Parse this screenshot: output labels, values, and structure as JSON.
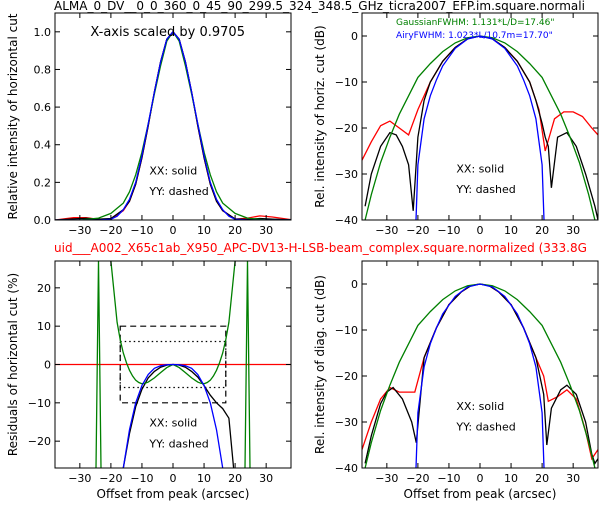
{
  "figure": {
    "title_top": "ALMA_0_DV__0_0_360_0_45_90_299.5_324_348.5_GHz_ticra2007_EFP.im.square.normali",
    "title_mid": "uid___A002_X65c1ab_X950_APC-DV13-H-LSB-beam_complex.square.normalized (333.8G",
    "title_mid_color": "#ff0000"
  },
  "chart_data": [
    {
      "id": "top-left",
      "type": "line",
      "title": "",
      "xlabel": "",
      "ylabel": "Relative intensity of horizontal cut",
      "xlim": [
        -38,
        38
      ],
      "ylim": [
        0,
        1.1
      ],
      "xticks": [
        -30,
        -20,
        -10,
        0,
        10,
        20,
        30
      ],
      "xtick_labels": [
        "−30",
        "−20",
        "−10",
        "0",
        "10",
        "20",
        "30"
      ],
      "yticks": [
        0,
        0.2,
        0.4,
        0.6,
        0.8,
        1.0
      ],
      "ytick_labels": [
        "0.0",
        "0.2",
        "0.4",
        "0.6",
        "0.8",
        "1.0"
      ],
      "grid": false,
      "annotations": [
        "X-axis scaled by 0.9705",
        "XX: solid",
        "YY: dashed"
      ],
      "series": [
        {
          "color": "#ff0000",
          "x": [
            -38,
            -32,
            -28,
            -24,
            -20,
            -16,
            -14,
            -12,
            -10,
            -8,
            -6,
            -4,
            -2,
            0,
            2,
            4,
            6,
            8,
            10,
            12,
            14,
            16,
            20,
            24,
            28,
            32,
            38
          ],
          "y": [
            0,
            0.012,
            0.012,
            0.003,
            0.005,
            0.05,
            0.1,
            0.19,
            0.33,
            0.5,
            0.68,
            0.84,
            0.96,
            1.0,
            0.96,
            0.84,
            0.68,
            0.5,
            0.33,
            0.19,
            0.1,
            0.05,
            0.005,
            0.01,
            0.022,
            0.016,
            0.002
          ]
        },
        {
          "color": "#000000",
          "x": [
            -38,
            -32,
            -28,
            -24,
            -20,
            -16,
            -14,
            -12,
            -10,
            -8,
            -6,
            -4,
            -2,
            0,
            2,
            4,
            6,
            8,
            10,
            12,
            14,
            16,
            20,
            24,
            28,
            32,
            38
          ],
          "y": [
            0,
            0.006,
            0.009,
            0.004,
            0.008,
            0.055,
            0.1,
            0.19,
            0.33,
            0.5,
            0.68,
            0.84,
            0.96,
            1.0,
            0.96,
            0.84,
            0.68,
            0.5,
            0.33,
            0.19,
            0.1,
            0.05,
            0.006,
            0.003,
            0.008,
            0.005,
            0.001
          ]
        },
        {
          "color": "#008000",
          "x": [
            -38,
            -30,
            -24,
            -20,
            -16,
            -14,
            -12,
            -10,
            -8,
            -6,
            -4,
            -2,
            0,
            2,
            4,
            6,
            8,
            10,
            12,
            14,
            16,
            20,
            24,
            30,
            38
          ],
          "y": [
            0,
            0,
            0.01,
            0.035,
            0.09,
            0.15,
            0.24,
            0.36,
            0.51,
            0.67,
            0.82,
            0.95,
            1.0,
            0.95,
            0.82,
            0.67,
            0.51,
            0.36,
            0.24,
            0.15,
            0.09,
            0.035,
            0.01,
            0,
            0
          ]
        },
        {
          "color": "#0000ff",
          "x": [
            -38,
            -24,
            -20,
            -18,
            -16,
            -14,
            -12,
            -10,
            -8,
            -6,
            -4,
            -2,
            0,
            2,
            4,
            6,
            8,
            10,
            12,
            14,
            16,
            18,
            20,
            24,
            38
          ],
          "y": [
            0,
            0,
            0.004,
            0.02,
            0.055,
            0.11,
            0.2,
            0.34,
            0.51,
            0.68,
            0.84,
            0.96,
            1.0,
            0.96,
            0.84,
            0.68,
            0.51,
            0.34,
            0.2,
            0.11,
            0.055,
            0.02,
            0.004,
            0,
            0
          ]
        }
      ]
    },
    {
      "id": "top-right",
      "type": "line",
      "title": "",
      "xlabel": "",
      "ylabel": "Rel. intensity of horiz. cut (dB)",
      "xlim": [
        -38,
        38
      ],
      "ylim": [
        -40,
        5
      ],
      "xticks": [
        -30,
        -20,
        -10,
        0,
        10,
        20,
        30
      ],
      "xtick_labels": [
        "−30",
        "−20",
        "−10",
        "0",
        "10",
        "20",
        "30"
      ],
      "yticks": [
        0,
        -10,
        -20,
        -30,
        -40
      ],
      "ytick_labels": [
        "0",
        "−10",
        "−20",
        "−30",
        "−40"
      ],
      "grid": false,
      "legend": [
        {
          "label": "GaussianFWHM: 1.131*L/D=17.46\"",
          "color": "#008000"
        },
        {
          "label": "AiryFWHM: 1.023*L/10.7m=17.70\"",
          "color": "#0000ff"
        }
      ],
      "annotations": [
        "XX: solid",
        "YY: dashed"
      ],
      "series": [
        {
          "color": "#ff0000",
          "x": [
            -38,
            -35,
            -32,
            -29,
            -26,
            -23,
            -20,
            -16,
            -12,
            -8,
            -4,
            0,
            4,
            8,
            12,
            16,
            19,
            21,
            24,
            27,
            30,
            33,
            36,
            38
          ],
          "y": [
            -27,
            -23,
            -19.5,
            -18.5,
            -20,
            -21.5,
            -16,
            -10,
            -5.5,
            -2.5,
            -0.6,
            0,
            -0.6,
            -2.5,
            -5.5,
            -10,
            -16,
            -25,
            -18,
            -16.5,
            -16.5,
            -17.5,
            -20,
            -21.5
          ]
        },
        {
          "color": "#000000",
          "x": [
            -37,
            -35,
            -32,
            -29,
            -27,
            -25,
            -23,
            -21.5,
            -20,
            -18,
            -16,
            -12,
            -8,
            -4,
            0,
            4,
            8,
            12,
            16,
            18,
            20,
            21,
            22,
            23,
            25,
            28,
            31,
            34,
            37,
            38
          ],
          "y": [
            -37,
            -30,
            -24,
            -21,
            -21.5,
            -24,
            -28,
            -38,
            -22,
            -14,
            -10,
            -5.5,
            -2.5,
            -0.6,
            0,
            -0.6,
            -2.5,
            -5.5,
            -10,
            -14,
            -19,
            -22,
            -24,
            -33,
            -22,
            -21,
            -24,
            -30,
            -37,
            -40
          ]
        },
        {
          "color": "#008000",
          "x": [
            -37,
            -35,
            -32,
            -29,
            -26,
            -23,
            -20,
            -16,
            -12,
            -8,
            -4,
            0,
            4,
            8,
            12,
            16,
            20,
            23,
            26,
            29,
            32,
            35,
            37
          ],
          "y": [
            -40,
            -34.5,
            -27.5,
            -22,
            -17,
            -13,
            -9,
            -6,
            -3.4,
            -1.5,
            -0.4,
            0,
            -0.4,
            -1.5,
            -3.4,
            -6,
            -9,
            -13,
            -17,
            -22,
            -27.5,
            -34.5,
            -40
          ]
        },
        {
          "color": "#0000ff",
          "x": [
            -20.6,
            -20,
            -18,
            -16,
            -14,
            -12,
            -8,
            -4,
            0,
            4,
            8,
            12,
            14,
            16,
            18,
            20,
            20.6
          ],
          "y": [
            -40,
            -28,
            -18,
            -13,
            -9.5,
            -6.5,
            -2.7,
            -0.65,
            0,
            -0.65,
            -2.7,
            -6.5,
            -9.5,
            -13,
            -18,
            -28,
            -40
          ]
        }
      ]
    },
    {
      "id": "bottom-left",
      "type": "line",
      "title": "",
      "xlabel": "Offset from peak (arcsec)",
      "ylabel": "Residuals of horizontal cut (%)",
      "xlim": [
        -38,
        38
      ],
      "ylim": [
        -27,
        27
      ],
      "xticks": [
        -30,
        -20,
        -10,
        0,
        10,
        20,
        30
      ],
      "xtick_labels": [
        "−30",
        "−20",
        "−10",
        "0",
        "10",
        "20",
        "30"
      ],
      "yticks": [
        20,
        10,
        0,
        -10,
        -20
      ],
      "ytick_labels": [
        "20",
        "10",
        "0",
        "−10",
        "−20"
      ],
      "grid": false,
      "annotations": [
        "XX: solid",
        "YY: dashed"
      ],
      "boxes": [
        {
          "style": "dashed",
          "x": [
            -17,
            17
          ],
          "y": [
            -10,
            10
          ]
        },
        {
          "style": "dotted",
          "x": [
            -17,
            17
          ],
          "y": [
            -6,
            6
          ]
        }
      ],
      "series": [
        {
          "color": "#ff0000",
          "x": [
            -38,
            38
          ],
          "y": [
            0,
            0
          ]
        },
        {
          "color": "#000000",
          "x": [
            -16,
            -14,
            -12,
            -10,
            -8,
            -6,
            -4,
            -2,
            0,
            2,
            4,
            6,
            8,
            10,
            12,
            14,
            16,
            18,
            19.5
          ],
          "y": [
            -27,
            -18,
            -11,
            -6.5,
            -3.5,
            -1.8,
            -0.7,
            -0.15,
            0,
            -0.15,
            -0.7,
            -1.8,
            -3.3,
            -5.5,
            -8,
            -10,
            -11.5,
            -14,
            -27
          ]
        },
        {
          "color": "#008000",
          "x": [
            -20,
            -19,
            -18,
            -17,
            -16,
            -15,
            -14,
            -13,
            -12,
            -11,
            -10,
            -9,
            -8,
            -6,
            -4,
            -2,
            0,
            2,
            4,
            6,
            8,
            9,
            10,
            11,
            12,
            13,
            14,
            15,
            16,
            17,
            18,
            19,
            20
          ],
          "y": [
            27,
            19,
            11,
            6.5,
            3,
            0.5,
            -1.5,
            -3,
            -4.1,
            -4.7,
            -5,
            -4.9,
            -4.6,
            -3.5,
            -2.1,
            -0.8,
            0,
            -0.8,
            -2.1,
            -3.5,
            -4.6,
            -4.9,
            -5,
            -4.7,
            -4.1,
            -3,
            -1.5,
            0.5,
            3,
            6.5,
            11,
            19,
            27
          ]
        },
        {
          "color": "#0000ff",
          "x": [
            -16,
            -14,
            -12,
            -10,
            -8,
            -6,
            -4,
            -2,
            0,
            2,
            4,
            6,
            8,
            10,
            12,
            14,
            16
          ],
          "y": [
            -27,
            -17,
            -10,
            -5.5,
            -2.6,
            -1,
            -0.35,
            -0.08,
            0,
            -0.08,
            -0.35,
            -1,
            -2.6,
            -5.5,
            -10,
            -17,
            -27
          ]
        }
      ],
      "extra_green": [
        {
          "x": [
            -24.8,
            -24.0,
            -23.2
          ],
          "y": [
            -27,
            27,
            -27
          ]
        },
        {
          "x": [
            23.2,
            24.0,
            24.8
          ],
          "y": [
            -27,
            27,
            -27
          ]
        }
      ]
    },
    {
      "id": "bottom-right",
      "type": "line",
      "title": "",
      "xlabel": "Offset from peak (arcsec)",
      "ylabel": "Rel. intensity of diag. cut (dB)",
      "xlim": [
        -38,
        38
      ],
      "ylim": [
        -40,
        5
      ],
      "xticks": [
        -30,
        -20,
        -10,
        0,
        10,
        20,
        30
      ],
      "xtick_labels": [
        "−30",
        "−20",
        "−10",
        "0",
        "10",
        "20",
        "30"
      ],
      "yticks": [
        0,
        -10,
        -20,
        -30,
        -40
      ],
      "ytick_labels": [
        "0",
        "−10",
        "−20",
        "−30",
        "−40"
      ],
      "grid": false,
      "annotations": [
        "XX: solid",
        "YY: dashed"
      ],
      "series": [
        {
          "color": "#ff0000",
          "x": [
            -38,
            -35,
            -32,
            -29,
            -26,
            -23,
            -21,
            -18,
            -14,
            -10,
            -6,
            -3,
            0,
            3,
            6,
            10,
            14,
            18,
            20.5,
            22,
            25,
            28,
            31,
            34,
            36,
            38
          ],
          "y": [
            -36,
            -30,
            -25,
            -22.5,
            -23.5,
            -23.5,
            -23.5,
            -16,
            -9.5,
            -4.5,
            -1.7,
            -0.4,
            0,
            -0.4,
            -1.7,
            -4.5,
            -9.5,
            -16,
            -20,
            -25.5,
            -24.5,
            -23,
            -25,
            -32,
            -38,
            -36
          ]
        },
        {
          "color": "#000000",
          "x": [
            -37,
            -35,
            -32,
            -30,
            -28,
            -25,
            -22,
            -20.5,
            -18,
            -14,
            -10,
            -6,
            -3,
            0,
            3,
            6,
            10,
            14,
            18,
            20.5,
            21.5,
            23,
            26,
            28,
            31,
            34,
            36,
            37,
            38
          ],
          "y": [
            -39,
            -33,
            -26,
            -23.5,
            -22.5,
            -25,
            -30,
            -34.5,
            -16,
            -9.5,
            -4.5,
            -1.7,
            -0.4,
            0,
            -0.4,
            -1.7,
            -4.5,
            -9.5,
            -16,
            -24,
            -35,
            -27,
            -23,
            -22,
            -24,
            -30,
            -37,
            -39,
            -38
          ]
        },
        {
          "color": "#008000",
          "x": [
            -37,
            -35,
            -32,
            -29,
            -26,
            -23,
            -20,
            -16,
            -12,
            -8,
            -4,
            0,
            4,
            8,
            12,
            16,
            20,
            23,
            26,
            29,
            32,
            35,
            37
          ],
          "y": [
            -40,
            -34.5,
            -27.5,
            -22,
            -17,
            -13,
            -9,
            -6,
            -3.4,
            -1.5,
            -0.4,
            0,
            -0.4,
            -1.5,
            -3.4,
            -6,
            -9,
            -13,
            -17,
            -22,
            -27.5,
            -34.5,
            -40
          ]
        },
        {
          "color": "#0000ff",
          "x": [
            -20.6,
            -20,
            -18,
            -16,
            -14,
            -12,
            -8,
            -4,
            0,
            4,
            8,
            12,
            14,
            16,
            18,
            20,
            20.6
          ],
          "y": [
            -40,
            -28,
            -18,
            -13,
            -9.5,
            -6.5,
            -2.7,
            -0.65,
            0,
            -0.65,
            -2.7,
            -6.5,
            -9.5,
            -13,
            -18,
            -28,
            -40
          ]
        }
      ]
    }
  ]
}
